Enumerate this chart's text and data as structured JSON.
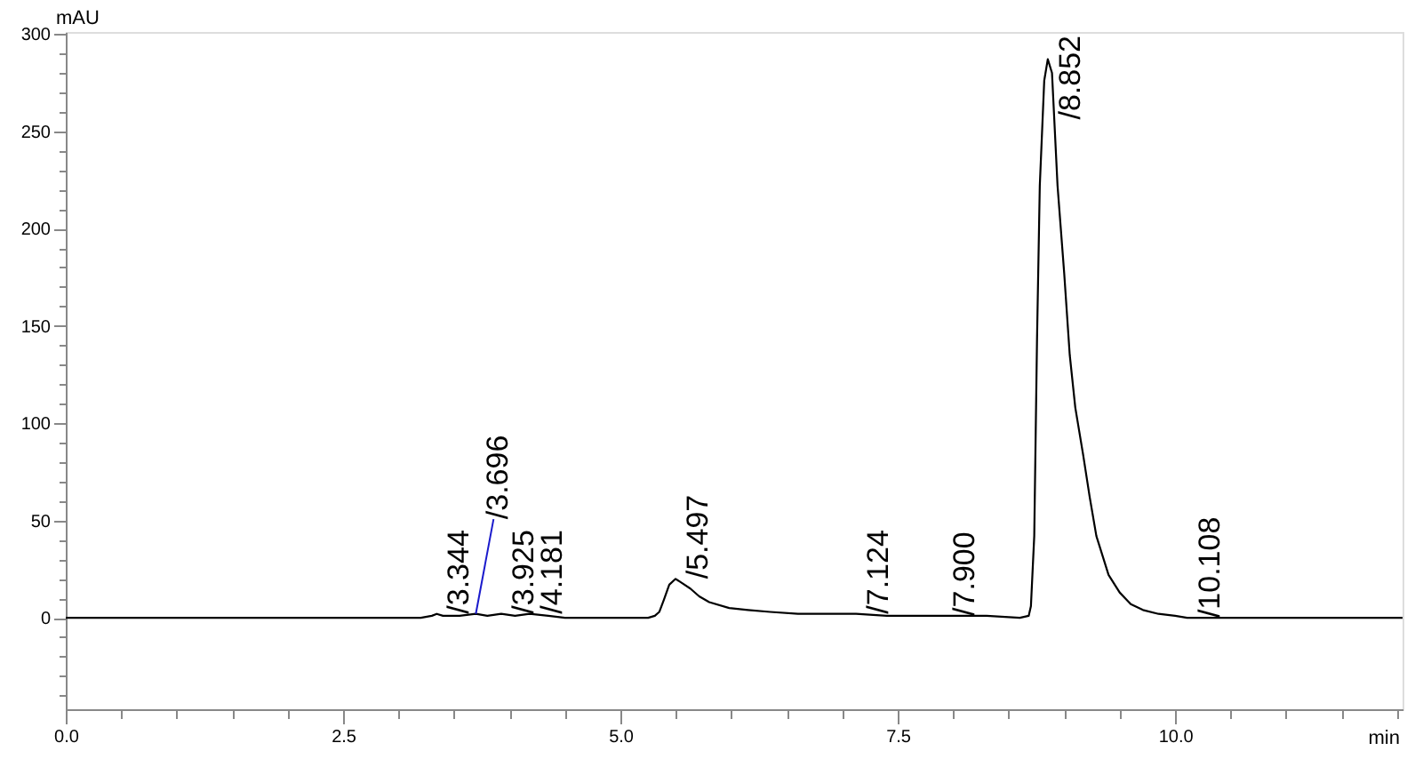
{
  "chart_data": {
    "type": "line",
    "xlabel": "min",
    "ylabel": "mAU",
    "xlim": [
      0,
      12.05
    ],
    "ylim": [
      -47,
      301
    ],
    "xticks": [
      {
        "value": 0,
        "label": "0.0"
      },
      {
        "value": 0.5,
        "label": null
      },
      {
        "value": 1,
        "label": null
      },
      {
        "value": 1.5,
        "label": null
      },
      {
        "value": 2,
        "label": null
      },
      {
        "value": 2.5,
        "label": "2.5"
      },
      {
        "value": 3,
        "label": null
      },
      {
        "value": 3.5,
        "label": null
      },
      {
        "value": 4,
        "label": null
      },
      {
        "value": 4.5,
        "label": null
      },
      {
        "value": 5,
        "label": "5.0"
      },
      {
        "value": 5.5,
        "label": null
      },
      {
        "value": 6,
        "label": null
      },
      {
        "value": 6.5,
        "label": null
      },
      {
        "value": 7,
        "label": null
      },
      {
        "value": 7.5,
        "label": "7.5"
      },
      {
        "value": 8,
        "label": null
      },
      {
        "value": 8.5,
        "label": null
      },
      {
        "value": 9,
        "label": null
      },
      {
        "value": 9.5,
        "label": null
      },
      {
        "value": 10,
        "label": "10.0"
      },
      {
        "value": 10.5,
        "label": null
      },
      {
        "value": 11,
        "label": null
      },
      {
        "value": 11.5,
        "label": null
      },
      {
        "value": 12,
        "label": null
      }
    ],
    "yticks": [
      {
        "value": -40,
        "label": null
      },
      {
        "value": -30,
        "label": null
      },
      {
        "value": -20,
        "label": null
      },
      {
        "value": -10,
        "label": null
      },
      0,
      {
        "value": 10,
        "label": null
      },
      {
        "value": 20,
        "label": null
      },
      {
        "value": 30,
        "label": null
      },
      {
        "value": 40,
        "label": null
      },
      50,
      {
        "value": 60,
        "label": null
      },
      {
        "value": 70,
        "label": null
      },
      {
        "value": 80,
        "label": null
      },
      {
        "value": 90,
        "label": null
      },
      100,
      {
        "value": 110,
        "label": null
      },
      {
        "value": 120,
        "label": null
      },
      {
        "value": 130,
        "label": null
      },
      {
        "value": 140,
        "label": null
      },
      150,
      {
        "value": 160,
        "label": null
      },
      {
        "value": 170,
        "label": null
      },
      {
        "value": 180,
        "label": null
      },
      {
        "value": 190,
        "label": null
      },
      200,
      {
        "value": 210,
        "label": null
      },
      {
        "value": 220,
        "label": null
      },
      {
        "value": 230,
        "label": null
      },
      {
        "value": 240,
        "label": null
      },
      250,
      {
        "value": 260,
        "label": null
      },
      {
        "value": 270,
        "label": null
      },
      {
        "value": 280,
        "label": null
      },
      {
        "value": 290,
        "label": null
      },
      300
    ],
    "series": [
      {
        "color": "#000000",
        "x": [
          0,
          3.2,
          3.3,
          3.344,
          3.4,
          3.55,
          3.696,
          3.8,
          3.925,
          4.05,
          4.181,
          4.35,
          4.5,
          5.25,
          5.31,
          5.35,
          5.39,
          5.44,
          5.497,
          5.55,
          5.63,
          5.71,
          5.8,
          5.98,
          6.15,
          6.35,
          6.6,
          6.89,
          7.124,
          7.4,
          7.9,
          8.3,
          8.6,
          8.68,
          8.7,
          8.73,
          8.755,
          8.78,
          8.82,
          8.852,
          8.89,
          8.94,
          9.0,
          9.05,
          9.1,
          9.17,
          9.23,
          9.29,
          9.4,
          9.5,
          9.6,
          9.71,
          9.85,
          10.0,
          10.108,
          10.5,
          11.0,
          12.05
        ],
        "values": [
          0,
          0,
          1,
          2,
          1,
          1,
          2,
          1,
          2,
          1,
          2,
          1,
          0,
          0,
          1,
          3,
          9,
          17,
          20,
          18,
          15,
          11,
          8,
          5,
          4,
          3,
          2,
          2,
          2,
          1,
          1,
          1,
          0,
          1,
          6,
          42,
          143,
          222,
          276,
          287,
          280,
          222,
          177,
          135,
          108,
          84,
          62,
          42,
          22,
          13,
          7,
          4,
          2,
          1,
          0,
          0,
          0,
          0
        ]
      }
    ],
    "annotations": [
      {
        "text": "/3.344",
        "x": 3.344,
        "y": 2
      },
      {
        "text": "/3.696",
        "x": 3.696,
        "y": 2
      },
      {
        "text": "/3.925",
        "x": 3.925,
        "y": 2
      },
      {
        "text": "/4.181",
        "x": 4.181,
        "y": 2
      },
      {
        "text": "/5.497",
        "x": 5.497,
        "y": 20
      },
      {
        "text": "/7.124",
        "x": 7.124,
        "y": 2
      },
      {
        "text": "/7.900",
        "x": 7.9,
        "y": 1
      },
      {
        "text": "/8.852",
        "x": 8.852,
        "y": 287
      },
      {
        "text": "/10.108",
        "x": 10.108,
        "y": 0
      }
    ]
  }
}
